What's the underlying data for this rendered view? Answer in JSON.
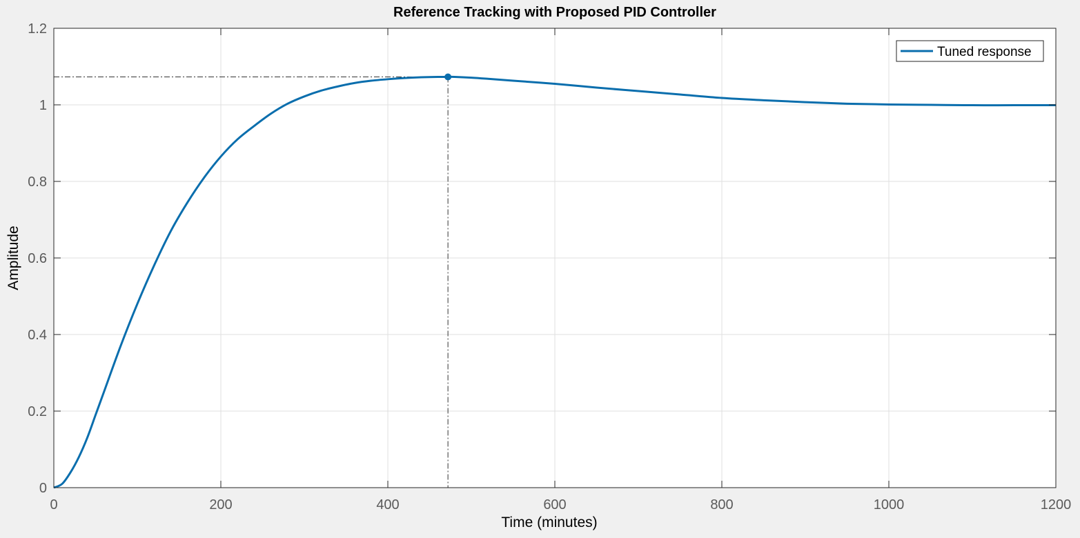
{
  "chart_data": {
    "type": "line",
    "title": "Reference Tracking with Proposed PID Controller",
    "xlabel": "Time (minutes)",
    "ylabel": "Amplitude",
    "xlim": [
      0,
      1200
    ],
    "ylim": [
      0,
      1.2
    ],
    "xticks": [
      0,
      200,
      400,
      600,
      800,
      1000,
      1200
    ],
    "xtick_labels": [
      "0",
      "200",
      "400",
      "600",
      "800",
      "1000",
      "1200"
    ],
    "yticks": [
      0,
      0.2,
      0.4,
      0.6,
      0.8,
      1.0,
      1.2
    ],
    "ytick_labels": [
      "0",
      "0.2",
      "0.4",
      "0.6",
      "0.8",
      "1",
      "1.2"
    ],
    "grid": true,
    "legend_position": "top-right",
    "series": [
      {
        "name": "Tuned response",
        "color": "#0a6ead",
        "x": [
          0,
          10,
          20,
          30,
          40,
          50,
          60,
          80,
          100,
          120,
          140,
          160,
          180,
          200,
          220,
          240,
          260,
          280,
          300,
          320,
          340,
          360,
          380,
          400,
          420,
          440,
          460,
          472,
          480,
          500,
          520,
          550,
          600,
          650,
          700,
          750,
          800,
          850,
          900,
          950,
          1000,
          1050,
          1100,
          1150,
          1200
        ],
        "y": [
          0,
          0.01,
          0.04,
          0.08,
          0.13,
          0.19,
          0.25,
          0.37,
          0.48,
          0.58,
          0.67,
          0.745,
          0.81,
          0.865,
          0.91,
          0.945,
          0.977,
          1.003,
          1.022,
          1.037,
          1.048,
          1.057,
          1.063,
          1.067,
          1.07,
          1.072,
          1.073,
          1.073,
          1.073,
          1.071,
          1.068,
          1.063,
          1.055,
          1.045,
          1.036,
          1.027,
          1.018,
          1.012,
          1.007,
          1.003,
          1.001,
          1.0,
          0.999,
          0.999,
          0.999
        ]
      }
    ],
    "annotations": [
      {
        "type": "peak-marker",
        "x": 472,
        "y": 1.073,
        "style": "dash-dot guide lines to axes"
      }
    ]
  },
  "colors": {
    "background": "#f0f0f0",
    "axes_background": "#ffffff",
    "grid": "#dfdfdf",
    "axis": "#262626",
    "tick_label": "#5a5a5a",
    "series": "#0a6ead",
    "guide": "#333333"
  }
}
